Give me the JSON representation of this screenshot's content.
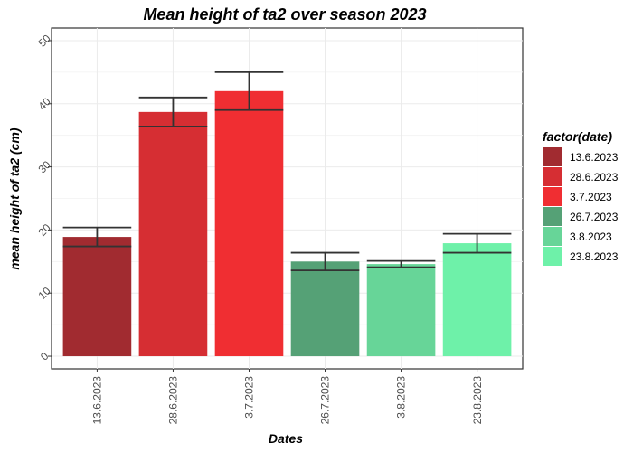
{
  "chart_data": {
    "type": "bar",
    "title": "Mean height of ta2 over season 2023",
    "xlabel": "Dates",
    "ylabel": "mean height of ta2 (cm)",
    "categories": [
      "13.6.2023",
      "28.6.2023",
      "3.7.2023",
      "26.7.2023",
      "3.8.2023",
      "23.8.2023"
    ],
    "values": [
      18.9,
      38.7,
      42.0,
      15.0,
      14.6,
      17.9
    ],
    "error_low": [
      17.4,
      36.4,
      39.0,
      13.6,
      14.1,
      16.4
    ],
    "error_high": [
      20.4,
      41.0,
      45.0,
      16.4,
      15.1,
      19.4
    ],
    "ylim": [
      -2,
      52
    ],
    "yticks": [
      0,
      10,
      20,
      30,
      40,
      50
    ],
    "colors": [
      "#A12B30",
      "#D62E33",
      "#F02E32",
      "#55A176",
      "#67D598",
      "#6EF1A9"
    ],
    "legend": {
      "title": "factor(date)",
      "placement": "right",
      "labels": [
        "13.6.2023",
        "28.6.2023",
        "3.7.2023",
        "26.7.2023",
        "3.8.2023",
        "23.8.2023"
      ]
    },
    "grid": true
  }
}
